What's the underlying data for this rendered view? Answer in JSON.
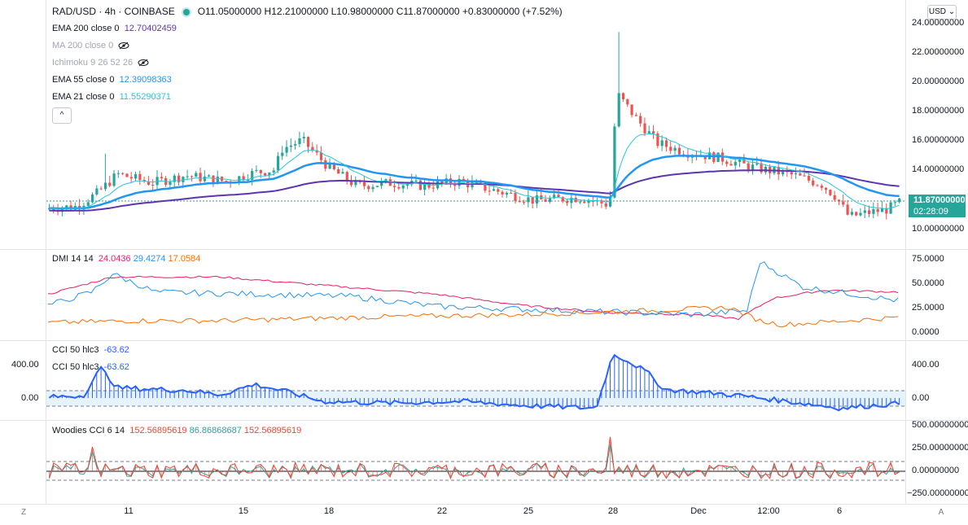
{
  "header": {
    "symbol": "RAD/USD · 4h · COINBASE",
    "ohlc": "O11.05000000  H12.21000000  L10.98000000  C11.87000000  +0.83000000 (+7.52%)"
  },
  "legend": {
    "ema200_label": "EMA 200 close 0",
    "ema200_value": "12.70402459",
    "ma200_label": "MA 200 close 0",
    "ichimoku_label": "Ichimoku 9 26 52 26",
    "ema55_label": "EMA 55 close 0",
    "ema55_value": "12.39098363",
    "ema21_label": "EMA 21 close 0",
    "ema21_value": "11.55290371",
    "collapse": "^"
  },
  "currency_select": "USD",
  "price_axis": [
    "24.00000000",
    "22.00000000",
    "20.00000000",
    "18.00000000",
    "16.00000000",
    "14.00000000",
    "10.00000000"
  ],
  "price_tag": {
    "price": "11.87000000",
    "countdown": "02:28:09"
  },
  "dmi": {
    "label": "DMI 14 14",
    "v1": "24.0436",
    "v2": "29.4274",
    "v3": "17.0584",
    "axis": [
      "75.0000",
      "50.0000",
      "25.0000",
      "0.0000"
    ]
  },
  "cci": {
    "label1": "CCI 50 hlc3",
    "value1": "-63.62",
    "label2": "CCI 50 hlc3",
    "value2": "-63.62",
    "axis_left": [
      "400.00",
      "0.00"
    ],
    "axis_right": [
      "400.00",
      "0.00"
    ]
  },
  "woodies": {
    "label": "Woodies CCI 6 14",
    "v1": "152.56895619",
    "v2": "86.86868687",
    "v3": "152.56895619",
    "axis": [
      "500.00000000",
      "250.00000000",
      "0.00000000",
      "−250.00000000"
    ]
  },
  "xaxis": [
    "11",
    "15",
    "18",
    "22",
    "25",
    "28",
    "Dec",
    "12:00",
    "6"
  ],
  "corners": {
    "left": "Z",
    "right": "A"
  },
  "colors": {
    "up": "#26a69a",
    "down": "#ef5350",
    "ema200": "#5e35b1",
    "ema55": "#2196f3",
    "ema21": "#26c6da",
    "dmi_plus": "#e91e63",
    "dmi_adx": "#2196f3",
    "dmi_minus": "#ff6d00",
    "cci": "#2962ff",
    "woodies_a": "#f44336",
    "woodies_b": "#26a69a"
  }
}
